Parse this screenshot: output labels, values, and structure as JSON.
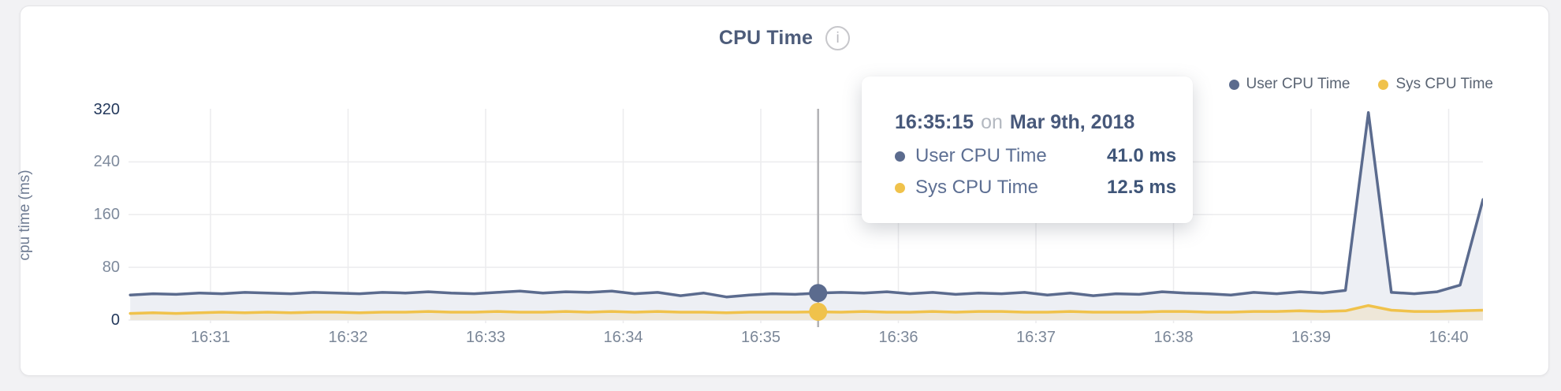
{
  "header": {
    "title": "CPU Time",
    "info_icon_glyph": "i"
  },
  "legend": {
    "items": [
      {
        "label": "User CPU Time",
        "color": "#5b6b8e"
      },
      {
        "label": "Sys CPU Time",
        "color": "#f0c24b"
      }
    ]
  },
  "tooltip": {
    "time": "16:35:15",
    "conjunction": "on",
    "date": "Mar 9th, 2018",
    "rows": [
      {
        "label": "User CPU Time",
        "value": "41.0 ms",
        "color": "#5b6b8e"
      },
      {
        "label": "Sys CPU Time",
        "value": "12.5 ms",
        "color": "#f0c24b"
      }
    ]
  },
  "colors": {
    "background": "#f2f2f4",
    "card_border": "#e4e4e7",
    "grid": "#ececee",
    "crosshair": "#b2b2b5",
    "axis_tick": "#7e8a9c",
    "axis_tick_emphasis": "#24395c",
    "axis_title": "#6e7b92",
    "title_text": "#4d5c7a",
    "legend_text": "#5a6473"
  },
  "chart_data": {
    "type": "area",
    "title": "CPU Time",
    "xlabel": "",
    "ylabel": "cpu time (ms)",
    "ylim": [
      0,
      320
    ],
    "grid": true,
    "legend_position": "top-right",
    "y_ticks": [
      0,
      80,
      160,
      240,
      320
    ],
    "x_ticks": [
      "16:31",
      "16:32",
      "16:33",
      "16:34",
      "16:35",
      "16:36",
      "16:37",
      "16:38",
      "16:39",
      "16:40"
    ],
    "x": [
      "16:30:15",
      "16:30:25",
      "16:30:35",
      "16:30:45",
      "16:30:55",
      "16:31:05",
      "16:31:15",
      "16:31:25",
      "16:31:35",
      "16:31:45",
      "16:31:55",
      "16:32:05",
      "16:32:15",
      "16:32:25",
      "16:32:35",
      "16:32:45",
      "16:32:55",
      "16:33:05",
      "16:33:15",
      "16:33:25",
      "16:33:35",
      "16:33:45",
      "16:33:55",
      "16:34:05",
      "16:34:15",
      "16:34:25",
      "16:34:35",
      "16:34:45",
      "16:34:55",
      "16:35:05",
      "16:35:15",
      "16:35:25",
      "16:35:35",
      "16:35:45",
      "16:35:55",
      "16:36:05",
      "16:36:15",
      "16:36:25",
      "16:36:35",
      "16:36:45",
      "16:36:55",
      "16:37:05",
      "16:37:15",
      "16:37:25",
      "16:37:35",
      "16:37:45",
      "16:37:55",
      "16:38:05",
      "16:38:15",
      "16:38:25",
      "16:38:35",
      "16:38:45",
      "16:38:55",
      "16:39:05",
      "16:39:15",
      "16:39:25",
      "16:39:35",
      "16:39:45",
      "16:39:55",
      "16:40:05"
    ],
    "series": [
      {
        "name": "User CPU Time",
        "color": "#5b6b8e",
        "fill": "#edeff4",
        "values": [
          38,
          40,
          39,
          41,
          40,
          42,
          41,
          40,
          42,
          41,
          40,
          42,
          41,
          43,
          41,
          40,
          42,
          44,
          41,
          43,
          42,
          44,
          40,
          42,
          37,
          41,
          35,
          38,
          40,
          39,
          41,
          42,
          41,
          43,
          40,
          42,
          39,
          41,
          40,
          42,
          38,
          41,
          37,
          40,
          39,
          43,
          41,
          40,
          38,
          42,
          40,
          43,
          41,
          45,
          315,
          42,
          40,
          43,
          53,
          183
        ]
      },
      {
        "name": "Sys CPU Time",
        "color": "#f0c24b",
        "fill": "rgba(240,194,75,0.16)",
        "values": [
          10,
          11,
          10,
          11,
          12,
          11,
          12,
          11,
          12,
          12,
          11,
          12,
          12,
          13,
          12,
          12,
          13,
          12,
          12,
          13,
          12,
          13,
          12,
          13,
          12,
          12,
          11,
          12,
          12,
          12,
          12.5,
          12,
          13,
          12,
          12,
          13,
          12,
          13,
          13,
          12,
          12,
          13,
          12,
          12,
          12,
          13,
          13,
          12,
          12,
          13,
          13,
          14,
          13,
          14,
          22,
          15,
          13,
          13,
          14,
          15
        ]
      }
    ],
    "crosshair_index": 30
  }
}
